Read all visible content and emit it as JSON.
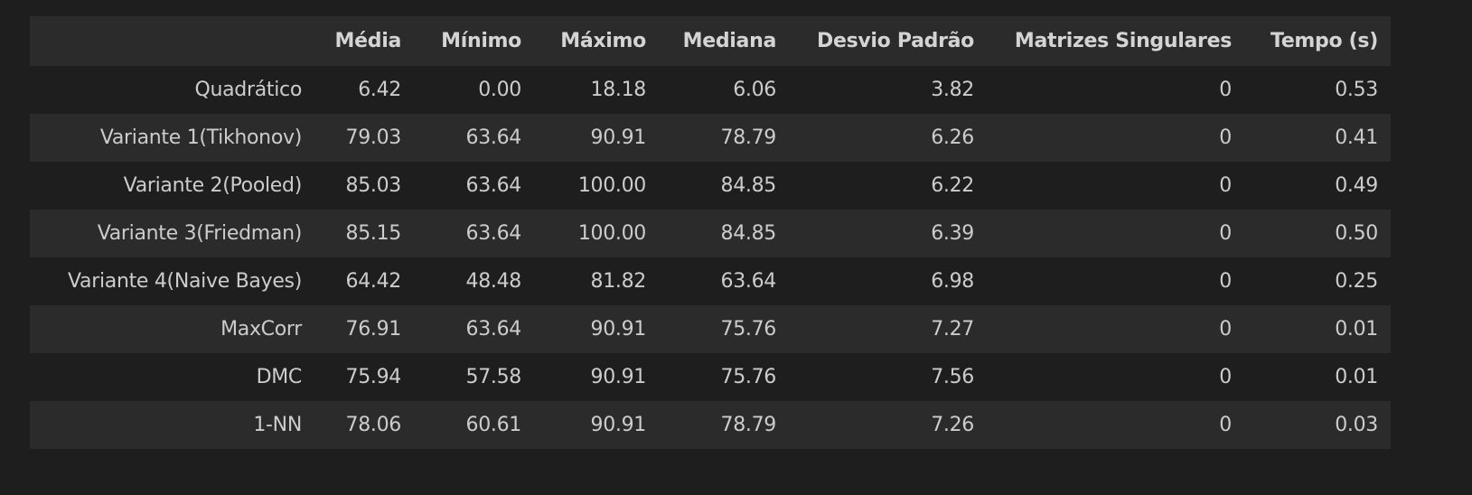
{
  "table": {
    "columns": [
      "",
      "Média",
      "Mínimo",
      "Máximo",
      "Mediana",
      "Desvio Padrão",
      "Matrizes Singulares",
      "Tempo (s)"
    ],
    "rows": [
      {
        "label": "Quadrático",
        "cells": [
          "6.42",
          "0.00",
          "18.18",
          "6.06",
          "3.82",
          "0",
          "0.53"
        ]
      },
      {
        "label": "Variante 1(Tikhonov)",
        "cells": [
          "79.03",
          "63.64",
          "90.91",
          "78.79",
          "6.26",
          "0",
          "0.41"
        ]
      },
      {
        "label": "Variante 2(Pooled)",
        "cells": [
          "85.03",
          "63.64",
          "100.00",
          "84.85",
          "6.22",
          "0",
          "0.49"
        ]
      },
      {
        "label": "Variante 3(Friedman)",
        "cells": [
          "85.15",
          "63.64",
          "100.00",
          "84.85",
          "6.39",
          "0",
          "0.50"
        ]
      },
      {
        "label": "Variante 4(Naive Bayes)",
        "cells": [
          "64.42",
          "48.48",
          "81.82",
          "63.64",
          "6.98",
          "0",
          "0.25"
        ]
      },
      {
        "label": "MaxCorr",
        "cells": [
          "76.91",
          "63.64",
          "90.91",
          "75.76",
          "7.27",
          "0",
          "0.01"
        ]
      },
      {
        "label": "DMC",
        "cells": [
          "75.94",
          "57.58",
          "90.91",
          "75.76",
          "7.56",
          "0",
          "0.01"
        ]
      },
      {
        "label": "1-NN",
        "cells": [
          "78.06",
          "60.61",
          "90.91",
          "78.79",
          "7.26",
          "0",
          "0.03"
        ]
      }
    ]
  }
}
